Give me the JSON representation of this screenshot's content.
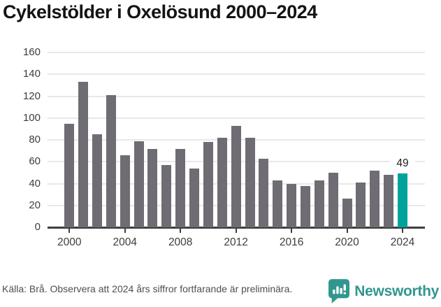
{
  "header": {
    "title": "Cykelstölder i Oxelösund 2000–2024"
  },
  "chart_data": {
    "type": "bar",
    "title": "Cykelstölder i Oxelösund 2000–2024",
    "x": [
      2000,
      2001,
      2002,
      2003,
      2004,
      2005,
      2006,
      2007,
      2008,
      2009,
      2010,
      2011,
      2012,
      2013,
      2014,
      2015,
      2016,
      2017,
      2018,
      2019,
      2020,
      2021,
      2022,
      2023,
      2024
    ],
    "values": [
      95,
      133,
      85,
      121,
      66,
      79,
      72,
      57,
      72,
      54,
      78,
      82,
      93,
      82,
      63,
      43,
      40,
      38,
      43,
      50,
      26,
      41,
      52,
      48,
      49
    ],
    "highlight_index": 24,
    "highlight_value_label": "49",
    "x_tick_labels": [
      "2000",
      "2004",
      "2008",
      "2012",
      "2016",
      "2020",
      "2024"
    ],
    "y_ticks": [
      0,
      20,
      40,
      60,
      80,
      100,
      120,
      140,
      160
    ],
    "ylim": [
      0,
      160
    ],
    "xlabel": "",
    "ylabel": "",
    "grid": true,
    "legend": false,
    "bar_color": "#6f6c74",
    "highlight_color": "#00a39b"
  },
  "footer": {
    "source_text": "Källa: Brå. Observera att 2024 års siffror fortfarande är preliminära.",
    "brand": {
      "name": "Newsworthy",
      "color": "#31978e"
    }
  }
}
